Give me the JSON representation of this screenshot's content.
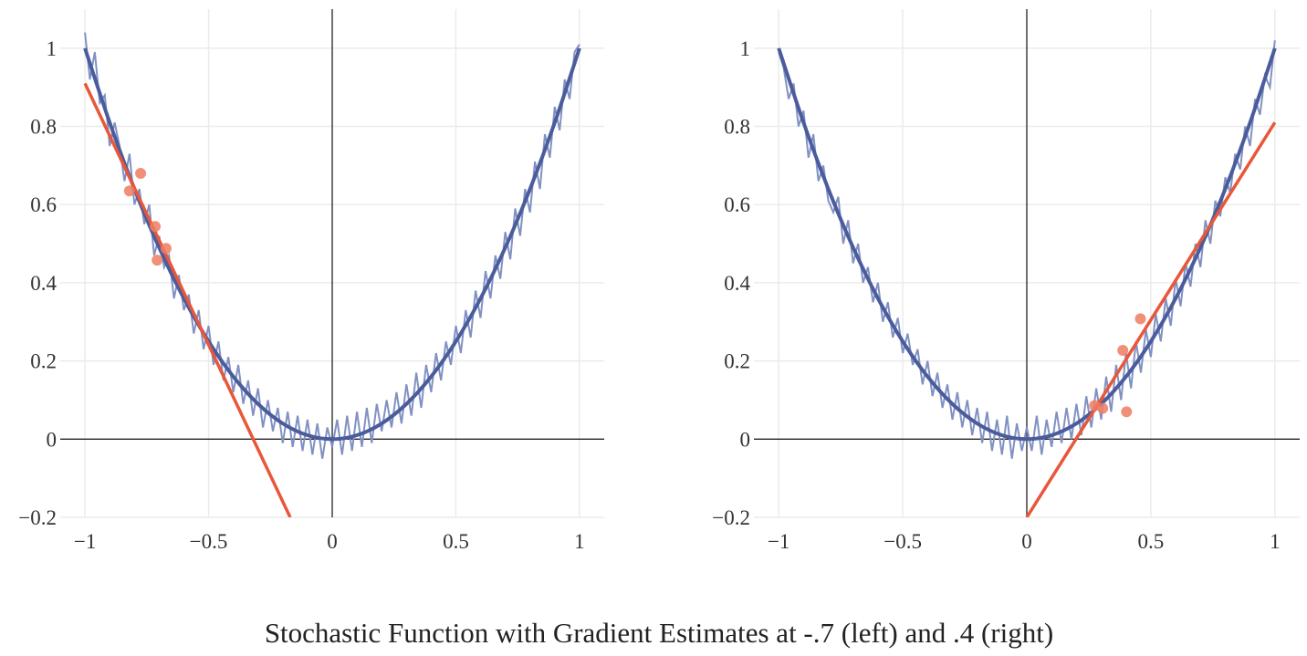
{
  "title": "Stochastic Function with Gradient Estimates at -.7 (left) and .4 (right)",
  "colors": {
    "noise": "#8191c3",
    "mean": "#4a5c9c",
    "tangent": "#e8573a",
    "samples": "#ee7d62",
    "grid": "#ebebeb",
    "axis": "#222222"
  },
  "chart_data": [
    {
      "type": "line",
      "panel": "left",
      "xlim": [
        -1.1,
        1.1
      ],
      "ylim": [
        -0.2,
        1.1
      ],
      "xticks": [
        -1,
        -0.5,
        0,
        0.5,
        1
      ],
      "xtick_labels": [
        "−1",
        "−0.5",
        "0",
        "0.5",
        "1"
      ],
      "yticks": [
        -0.2,
        0,
        0.2,
        0.4,
        0.6,
        0.8,
        1
      ],
      "ytick_labels": [
        "−0.2",
        "0",
        "0.2",
        "0.4",
        "0.6",
        "0.8",
        "1"
      ],
      "grid": true,
      "noisy_series": {
        "x_start": -1,
        "x_step": 0.02,
        "y": [
          1.04,
          0.92,
          0.99,
          0.86,
          0.88,
          0.75,
          0.81,
          0.75,
          0.66,
          0.73,
          0.6,
          0.64,
          0.55,
          0.6,
          0.47,
          0.52,
          0.44,
          0.47,
          0.36,
          0.42,
          0.33,
          0.37,
          0.27,
          0.33,
          0.23,
          0.29,
          0.19,
          0.25,
          0.15,
          0.21,
          0.12,
          0.19,
          0.09,
          0.15,
          0.06,
          0.13,
          0.03,
          0.1,
          0.02,
          0.08,
          -0.01,
          0.07,
          -0.02,
          0.06,
          -0.03,
          0.05,
          -0.04,
          0.04,
          -0.05,
          0.03,
          -0.02,
          0.05,
          -0.04,
          0.06,
          -0.03,
          0.07,
          -0.02,
          0.08,
          -0.01,
          0.09,
          0.02,
          0.1,
          0.03,
          0.12,
          0.04,
          0.14,
          0.06,
          0.17,
          0.08,
          0.19,
          0.12,
          0.22,
          0.15,
          0.25,
          0.19,
          0.29,
          0.22,
          0.33,
          0.26,
          0.38,
          0.31,
          0.43,
          0.36,
          0.47,
          0.41,
          0.53,
          0.46,
          0.59,
          0.52,
          0.64,
          0.58,
          0.71,
          0.64,
          0.78,
          0.72,
          0.85,
          0.79,
          0.92,
          0.87,
          0.99,
          1.01
        ]
      },
      "mean_curve": {
        "x": [
          -1,
          -0.9,
          -0.8,
          -0.7,
          -0.6,
          -0.5,
          -0.4,
          -0.3,
          -0.2,
          -0.1,
          0,
          0.1,
          0.2,
          0.3,
          0.4,
          0.5,
          0.6,
          0.7,
          0.8,
          0.9,
          1
        ],
        "y": [
          1,
          0.81,
          0.64,
          0.49,
          0.36,
          0.25,
          0.16,
          0.09,
          0.04,
          0.01,
          0,
          0.01,
          0.04,
          0.09,
          0.16,
          0.25,
          0.36,
          0.49,
          0.64,
          0.81,
          1
        ]
      },
      "tangent_line": {
        "x": [
          -1,
          -0.17
        ],
        "y": [
          0.91,
          -0.2
        ]
      },
      "sample_points": {
        "x": [
          -0.82,
          -0.775,
          -0.716,
          -0.672,
          -0.708
        ],
        "y": [
          0.635,
          0.68,
          0.544,
          0.488,
          0.458
        ]
      }
    },
    {
      "type": "line",
      "panel": "right",
      "xlim": [
        -1.1,
        1.1
      ],
      "ylim": [
        -0.2,
        1.1
      ],
      "xticks": [
        -1,
        -0.5,
        0,
        0.5,
        1
      ],
      "xtick_labels": [
        "−1",
        "−0.5",
        "0",
        "0.5",
        "1"
      ],
      "yticks": [
        -0.2,
        0,
        0.2,
        0.4,
        0.6,
        0.8,
        1
      ],
      "ytick_labels": [
        "−0.2",
        "0",
        "0.2",
        "0.4",
        "0.6",
        "0.8",
        "1"
      ],
      "grid": true,
      "noisy_series": {
        "x_start": -1,
        "x_step": 0.02,
        "y": [
          0.99,
          0.95,
          0.87,
          0.91,
          0.8,
          0.84,
          0.72,
          0.78,
          0.66,
          0.7,
          0.61,
          0.58,
          0.62,
          0.5,
          0.56,
          0.45,
          0.5,
          0.4,
          0.44,
          0.35,
          0.4,
          0.3,
          0.35,
          0.26,
          0.31,
          0.22,
          0.27,
          0.19,
          0.23,
          0.14,
          0.2,
          0.11,
          0.17,
          0.08,
          0.14,
          0.05,
          0.12,
          0.03,
          0.1,
          0.01,
          0.08,
          -0.01,
          0.07,
          -0.03,
          0.05,
          -0.04,
          0.06,
          -0.05,
          0.04,
          -0.03,
          0.03,
          -0.03,
          0.06,
          -0.04,
          0.05,
          -0.02,
          0.07,
          -0.01,
          0.08,
          0.0,
          0.09,
          0.01,
          0.11,
          0.03,
          0.13,
          0.05,
          0.16,
          0.07,
          0.19,
          0.1,
          0.22,
          0.13,
          0.25,
          0.17,
          0.28,
          0.21,
          0.32,
          0.25,
          0.36,
          0.29,
          0.41,
          0.34,
          0.45,
          0.39,
          0.5,
          0.44,
          0.56,
          0.5,
          0.61,
          0.57,
          0.67,
          0.63,
          0.73,
          0.69,
          0.8,
          0.75,
          0.87,
          0.83,
          0.93,
          0.9,
          1.02
        ]
      },
      "mean_curve": {
        "x": [
          -1,
          -0.9,
          -0.8,
          -0.7,
          -0.6,
          -0.5,
          -0.4,
          -0.3,
          -0.2,
          -0.1,
          0,
          0.1,
          0.2,
          0.3,
          0.4,
          0.5,
          0.6,
          0.7,
          0.8,
          0.9,
          1
        ],
        "y": [
          1,
          0.81,
          0.64,
          0.49,
          0.36,
          0.25,
          0.16,
          0.09,
          0.04,
          0.01,
          0,
          0.01,
          0.04,
          0.09,
          0.16,
          0.25,
          0.36,
          0.49,
          0.64,
          0.81,
          1
        ]
      },
      "tangent_line": {
        "x": [
          0,
          1
        ],
        "y": [
          -0.2,
          0.81
        ]
      },
      "sample_points": {
        "x": [
          0.458,
          0.387,
          0.273,
          0.306,
          0.402
        ],
        "y": [
          0.308,
          0.227,
          0.086,
          0.079,
          0.07
        ]
      }
    }
  ]
}
